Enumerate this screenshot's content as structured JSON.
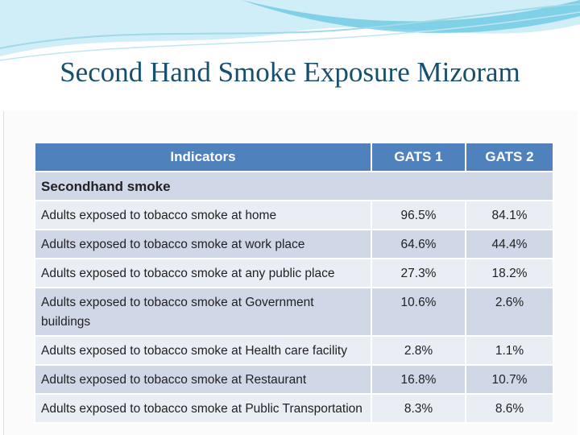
{
  "header": {
    "title": "Second Hand Smoke Exposure Mizoram"
  },
  "table": {
    "columns": [
      "Indicators",
      "GATS 1",
      "GATS 2"
    ],
    "section": "Secondhand smoke",
    "rows": [
      [
        "Adults exposed to tobacco smoke at home",
        "96.5%",
        "84.1%"
      ],
      [
        "Adults exposed to tobacco smoke at work place",
        "64.6%",
        "44.4%"
      ],
      [
        "Adults exposed to tobacco smoke at any public place",
        "27.3%",
        "18.2%"
      ],
      [
        "Adults exposed to tobacco smoke at Government buildings",
        "10.6%",
        "2.6%"
      ],
      [
        "Adults exposed to tobacco smoke at Health care facility",
        "2.8%",
        "1.1%"
      ],
      [
        "Adults exposed to tobacco smoke at Restaurant",
        "16.8%",
        "10.7%"
      ],
      [
        "Adults exposed to tobacco smoke at Public Transportation",
        "8.3%",
        "8.6%"
      ]
    ]
  }
}
